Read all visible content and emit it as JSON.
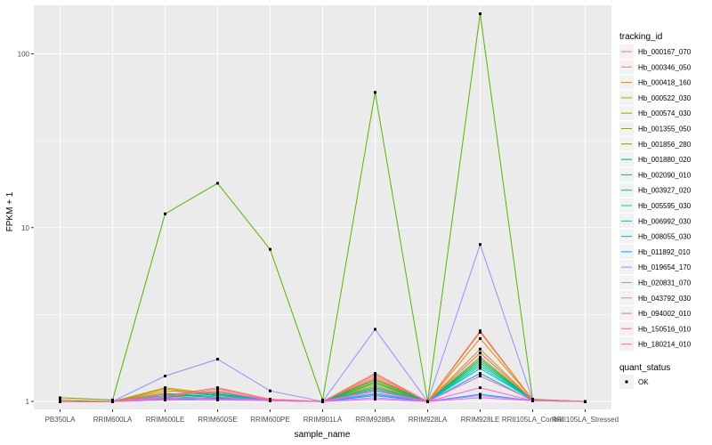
{
  "chart_data": {
    "type": "line",
    "xlabel": "sample_name",
    "ylabel": "FPKM + 1",
    "y_scale": "log10",
    "ylim": [
      0.9,
      190
    ],
    "yticks": [
      1,
      10,
      100
    ],
    "ytick_labels": [
      "1",
      "10",
      "100"
    ],
    "categories": [
      "PB350LA",
      "RRIM600LA",
      "RRIM600LE",
      "RRIM600SE",
      "RRIM600PE",
      "RRIM901LA",
      "RRIM928BA",
      "RRIM928LA",
      "RRIM928LE",
      "RRII105LA_Control",
      "RRII105LA_Stressed"
    ],
    "category_labels": [
      "PB350LA",
      "RRIM600LA",
      "RRIM600LE",
      "RRIM600SE",
      "RRIM600PE",
      "RRIM901LA",
      "RRIM928BA",
      "RRIM928LA",
      "RRIM928LE",
      "RRII105LA_Control",
      "RRII105LA_Stressed"
    ],
    "grid": true,
    "legend_position": "right",
    "legend_title": "tracking_id",
    "legend2_title": "quant_status",
    "legend2_entries": [
      "OK"
    ],
    "series": [
      {
        "name": "Hb_000167_070",
        "color": "#F8766D",
        "values": [
          1.0,
          1.0,
          1.05,
          1.15,
          1.02,
          1.0,
          1.45,
          1.0,
          2.55,
          1.02,
          1.0
        ]
      },
      {
        "name": "Hb_000346_050",
        "color": "#EE8043",
        "values": [
          1.0,
          1.0,
          1.08,
          1.2,
          1.03,
          1.0,
          1.42,
          1.0,
          2.5,
          1.02,
          1.0
        ]
      },
      {
        "name": "Hb_000418_160",
        "color": "#E08B00",
        "values": [
          1.0,
          1.0,
          1.15,
          1.12,
          1.02,
          1.0,
          1.35,
          1.0,
          2.3,
          1.03,
          1.0
        ]
      },
      {
        "name": "Hb_000522_030",
        "color": "#CC9600",
        "values": [
          1.0,
          1.0,
          1.2,
          1.1,
          1.02,
          1.0,
          1.3,
          1.0,
          2.0,
          1.02,
          1.0
        ]
      },
      {
        "name": "Hb_000574_030",
        "color": "#B29F00",
        "values": [
          1.02,
          1.0,
          1.18,
          1.08,
          1.02,
          1.0,
          1.25,
          1.0,
          1.9,
          1.02,
          1.0
        ]
      },
      {
        "name": "Hb_001355_050",
        "color": "#92A800",
        "values": [
          1.0,
          1.0,
          1.12,
          1.05,
          1.02,
          1.0,
          1.2,
          1.0,
          1.8,
          1.02,
          1.0
        ]
      },
      {
        "name": "Hb_001856_280",
        "color": "#53B400",
        "values": [
          1.05,
          1.02,
          12.0,
          18.0,
          7.5,
          1.02,
          60.0,
          1.0,
          170.0,
          1.03,
          1.0
        ]
      },
      {
        "name": "Hb_001880_020",
        "color": "#00BA38",
        "values": [
          1.0,
          1.0,
          1.06,
          1.1,
          1.02,
          1.0,
          1.28,
          1.0,
          1.75,
          1.02,
          1.0
        ]
      },
      {
        "name": "Hb_002090_010",
        "color": "#00BE6B",
        "values": [
          1.0,
          1.0,
          1.1,
          1.06,
          1.02,
          1.0,
          1.33,
          1.0,
          1.7,
          1.02,
          1.0
        ]
      },
      {
        "name": "Hb_003927_020",
        "color": "#00C093",
        "values": [
          1.0,
          1.0,
          1.05,
          1.04,
          1.02,
          1.0,
          1.22,
          1.0,
          1.65,
          1.02,
          1.0
        ]
      },
      {
        "name": "Hb_005595_030",
        "color": "#00C0B4",
        "values": [
          1.0,
          1.0,
          1.04,
          1.08,
          1.02,
          1.0,
          1.18,
          1.0,
          1.6,
          1.02,
          1.0
        ]
      },
      {
        "name": "Hb_006992_030",
        "color": "#00BDD0",
        "values": [
          1.0,
          1.0,
          1.08,
          1.12,
          1.02,
          1.0,
          1.15,
          1.0,
          1.55,
          1.02,
          1.0
        ]
      },
      {
        "name": "Hb_008055_030",
        "color": "#00B4EF",
        "values": [
          1.0,
          1.0,
          1.03,
          1.05,
          1.01,
          1.0,
          1.1,
          1.0,
          1.45,
          1.01,
          1.0
        ]
      },
      {
        "name": "Hb_011892_010",
        "color": "#00A5FF",
        "values": [
          1.0,
          1.0,
          1.02,
          1.04,
          1.01,
          1.0,
          1.08,
          1.0,
          1.1,
          1.01,
          1.0
        ]
      },
      {
        "name": "Hb_019654_170",
        "color": "#8F91FF",
        "values": [
          1.0,
          1.0,
          1.4,
          1.75,
          1.15,
          1.0,
          2.6,
          1.0,
          8.0,
          1.02,
          1.0
        ]
      },
      {
        "name": "Hb_020831_070",
        "color": "#C77CFF",
        "values": [
          1.0,
          1.0,
          1.05,
          1.03,
          1.02,
          1.0,
          1.05,
          1.0,
          1.08,
          1.01,
          1.0
        ]
      },
      {
        "name": "Hb_043792_030",
        "color": "#E76BF3",
        "values": [
          1.0,
          1.0,
          1.02,
          1.02,
          1.01,
          1.0,
          1.03,
          1.0,
          1.05,
          1.01,
          1.0
        ]
      },
      {
        "name": "Hb_094002_010",
        "color": "#F863DC",
        "values": [
          1.0,
          1.0,
          1.03,
          1.06,
          1.01,
          1.0,
          1.12,
          1.0,
          1.2,
          1.01,
          1.0
        ]
      },
      {
        "name": "Hb_150516_010",
        "color": "#FF62BC",
        "values": [
          1.0,
          1.0,
          1.1,
          1.14,
          1.02,
          1.0,
          1.16,
          1.0,
          1.4,
          1.02,
          1.0
        ]
      },
      {
        "name": "Hb_180214_010",
        "color": "#FF6A98",
        "values": [
          1.0,
          1.0,
          1.06,
          1.18,
          1.03,
          1.0,
          1.38,
          1.0,
          1.9,
          1.02,
          1.0
        ]
      }
    ]
  }
}
